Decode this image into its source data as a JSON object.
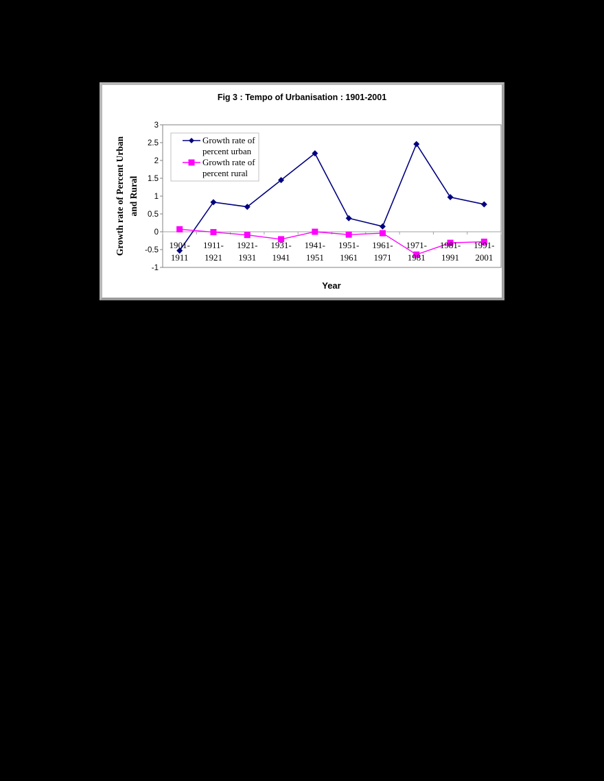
{
  "chart_data": {
    "type": "line",
    "title": "Fig 3 : Tempo of Urbanisation : 1901-2001",
    "xlabel": "Year",
    "ylabel": "Growth rate of Percent Urban and Rural",
    "ylabel_lines": [
      "Growth rate of Percent Urban",
      "and Rural"
    ],
    "categories": [
      "1901-1911",
      "1911-1921",
      "1921-1931",
      "1931-1941",
      "1941-1951",
      "1951-1961",
      "1961-1971",
      "1971-1981",
      "1981-1991",
      "1991-2001"
    ],
    "category_lines": [
      [
        "1901-",
        "1911"
      ],
      [
        "1911-",
        "1921"
      ],
      [
        "1921-",
        "1931"
      ],
      [
        "1931-",
        "1941"
      ],
      [
        "1941-",
        "1951"
      ],
      [
        "1951-",
        "1961"
      ],
      [
        "1961-",
        "1971"
      ],
      [
        "1971-",
        "1981"
      ],
      [
        "1981-",
        "1991"
      ],
      [
        "1991-",
        "2001"
      ]
    ],
    "series": [
      {
        "name": "Growth rate of percent urban",
        "legend_lines": [
          "Growth rate of",
          "percent urban"
        ],
        "color": "#000080",
        "marker": "diamond",
        "values": [
          -0.53,
          0.83,
          0.7,
          1.45,
          2.2,
          0.38,
          0.15,
          2.46,
          0.97,
          0.77
        ]
      },
      {
        "name": "Growth rate of percent rural",
        "legend_lines": [
          "Growth rate of",
          "percent rural"
        ],
        "color": "#ff00ff",
        "marker": "square",
        "values": [
          0.07,
          -0.01,
          -0.09,
          -0.21,
          0.0,
          -0.08,
          -0.04,
          -0.64,
          -0.31,
          -0.28
        ]
      }
    ],
    "ylim": [
      -1,
      3
    ],
    "yticks": [
      3,
      2.5,
      2,
      1.5,
      1,
      0.5,
      0,
      -0.5,
      -1
    ],
    "ytick_labels": [
      "3",
      "2.5",
      "2",
      "1.5",
      "1",
      "0.5",
      "0",
      "-0.5",
      "-1"
    ],
    "grid": false,
    "legend_position": "upper-left inside plot"
  }
}
